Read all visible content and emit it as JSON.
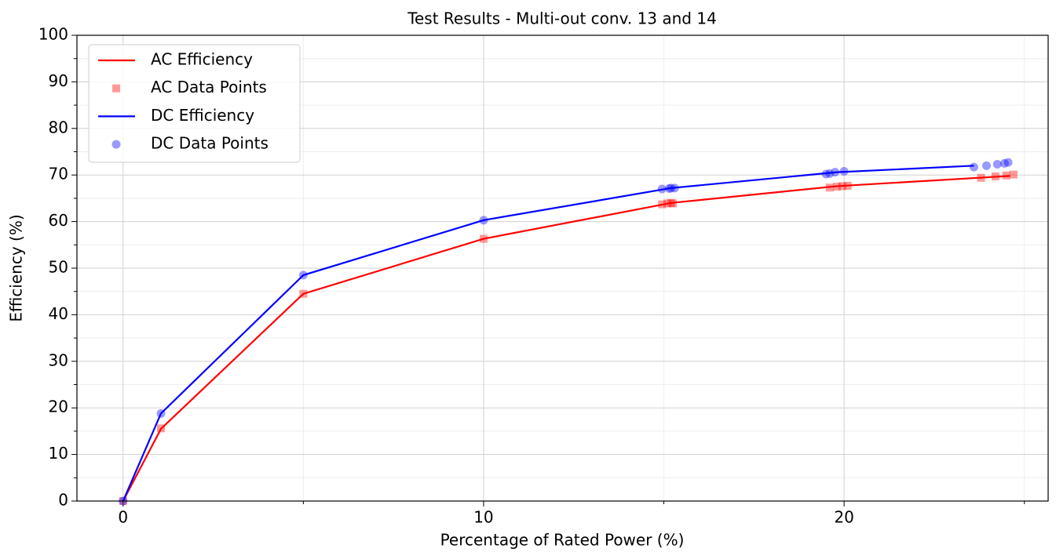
{
  "chart_data": {
    "type": "line",
    "title": "Test Results - Multi-out conv. 13 and 14",
    "xlabel": "Percentage of Rated Power (%)",
    "ylabel": "Efficiency (%)",
    "xlim": [
      -1.28,
      25.66
    ],
    "ylim": [
      0,
      100
    ],
    "xticks": [
      0,
      10,
      20
    ],
    "yticks": [
      0,
      10,
      20,
      30,
      40,
      50,
      60,
      70,
      80,
      90,
      100
    ],
    "xminorticks": [
      5,
      15,
      25
    ],
    "yminorticks": [
      5,
      15,
      25,
      35,
      45,
      55,
      65,
      75,
      85,
      95
    ],
    "grid": true,
    "legend": "upper left",
    "series": [
      {
        "name": "AC Efficiency",
        "kind": "line",
        "color": "#ff0000",
        "x": [
          0,
          1.05,
          5,
          10,
          15.2,
          19.8,
          24.6
        ],
        "values": [
          0,
          15.5,
          44.5,
          56.3,
          64.0,
          67.6,
          69.8
        ]
      },
      {
        "name": "AC Data Points",
        "kind": "square",
        "color": "#ff0000",
        "x": [
          0,
          1.05,
          5,
          10,
          14.95,
          15.1,
          15.2,
          15.25,
          19.6,
          19.8,
          19.95,
          20.1,
          23.8,
          24.2,
          24.5,
          24.7
        ],
        "values": [
          0,
          15.6,
          44.5,
          56.3,
          63.7,
          63.9,
          64.0,
          63.9,
          67.3,
          67.5,
          67.6,
          67.7,
          69.4,
          69.7,
          69.9,
          70.1
        ]
      },
      {
        "name": "DC Efficiency",
        "kind": "line",
        "color": "#0000ff",
        "x": [
          0,
          1.05,
          5,
          10,
          15.2,
          19.8,
          23.6
        ],
        "values": [
          0,
          18.8,
          48.5,
          60.3,
          67.2,
          70.6,
          72.0
        ]
      },
      {
        "name": "DC Data Points",
        "kind": "circle",
        "color": "#0000ff",
        "x": [
          0,
          1.05,
          5,
          10,
          14.95,
          15.15,
          15.2,
          15.3,
          19.5,
          19.6,
          19.75,
          20.0,
          23.6,
          23.95,
          24.25,
          24.45,
          24.55
        ],
        "values": [
          0,
          18.8,
          48.5,
          60.3,
          67.0,
          67.1,
          67.2,
          67.2,
          70.2,
          70.3,
          70.6,
          70.8,
          71.7,
          72.0,
          72.3,
          72.5,
          72.7
        ]
      }
    ]
  }
}
